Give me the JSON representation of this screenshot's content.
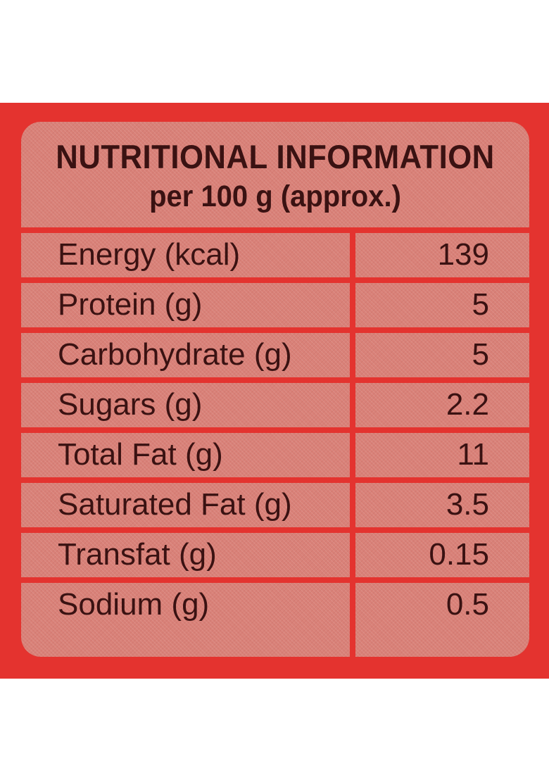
{
  "title": {
    "line1": "NUTRITIONAL INFORMATION",
    "line2": "per 100 g (approx.)"
  },
  "rows": [
    {
      "label": "Energy (kcal)",
      "value": "139"
    },
    {
      "label": "Protein (g)",
      "value": "5"
    },
    {
      "label": "Carbohydrate (g)",
      "value": "5"
    },
    {
      "label": "Sugars (g)",
      "value": "2.2"
    },
    {
      "label": "Total Fat (g)",
      "value": "11"
    },
    {
      "label": "Saturated Fat (g)",
      "value": "3.5"
    },
    {
      "label": "Transfat (g)",
      "value": "0.15"
    },
    {
      "label": "Sodium (g)",
      "value": "0.5"
    }
  ],
  "colors": {
    "band": "#e4332f",
    "panel": "#d98178",
    "text": "#3a1212"
  }
}
